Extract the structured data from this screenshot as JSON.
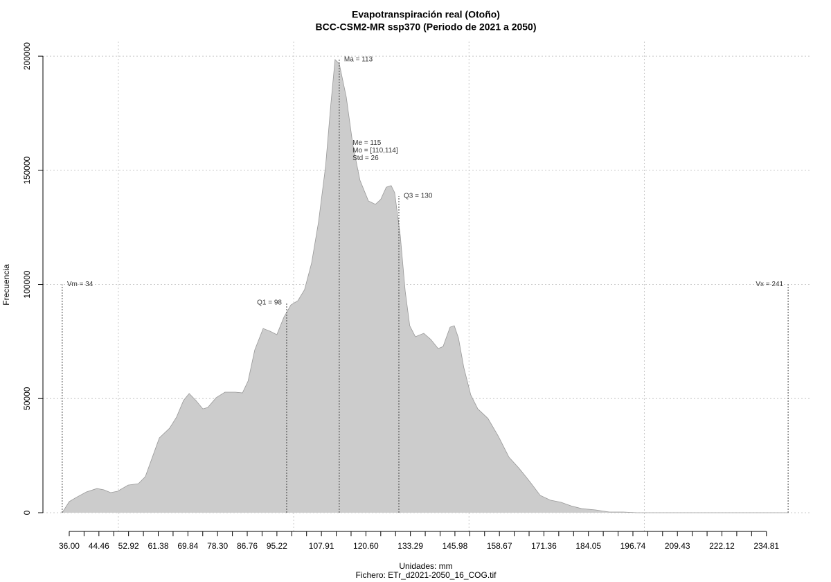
{
  "chart_data": {
    "type": "area",
    "title": "Evapotranspiración real (Otoño)",
    "subtitle": "BCC-CSM2-MR ssp370 (Periodo de 2021 a 2050)",
    "xlabel": "Unidades: mm",
    "caption": "Fichero: ETr_d2021-2050_16_COG.tif",
    "ylabel": "Frecuencia",
    "color": "#cccccc",
    "line_color": "#999999",
    "grid": true,
    "xlim": [
      28.5,
      247.3
    ],
    "ylim": [
      -8200,
      206400
    ],
    "xticks": [
      {
        "value": 36,
        "label": "36.00"
      },
      44.46,
      52.92,
      61.38,
      69.84,
      {
        "value": 78.3,
        "label": "78.30"
      },
      86.76,
      95.22,
      107.91,
      {
        "value": 120.6,
        "label": "120.60"
      },
      133.29,
      145.98,
      158.67,
      171.36,
      184.05,
      196.74,
      209.43,
      222.12,
      234.81
    ],
    "xticks_minor": [
      40.23,
      48.69,
      57.15,
      65.61,
      74.07,
      82.53,
      90.99,
      99.45,
      103.68,
      112.14,
      116.37,
      124.83,
      129.06,
      137.52,
      141.75,
      150.21,
      154.44,
      162.9,
      167.13,
      175.59,
      179.82,
      188.28,
      192.51,
      200.97,
      205.2,
      213.66,
      217.89,
      226.35,
      230.58
    ],
    "xgrid": [
      50,
      100,
      150,
      200
    ],
    "yticks": [
      0,
      50000,
      100000,
      150000,
      200000
    ],
    "x": [
      34.0,
      36.0,
      38.0,
      40.9,
      43.9,
      45.9,
      47.8,
      49.8,
      52.8,
      55.7,
      57.7,
      59.7,
      61.7,
      64.6,
      66.6,
      68.6,
      70.2,
      72.1,
      74.1,
      75.5,
      77.9,
      80.4,
      83.4,
      85.4,
      87.0,
      88.9,
      91.3,
      93.3,
      95.2,
      97.2,
      99.2,
      101.2,
      103.1,
      105.1,
      107.1,
      109.1,
      110.6,
      111.8,
      113.0,
      115.0,
      116.9,
      118.9,
      121.3,
      123.3,
      124.8,
      126.4,
      127.8,
      128.8,
      130.4,
      131.8,
      133.1,
      134.7,
      137.1,
      139.1,
      141.2,
      142.6,
      144.6,
      145.8,
      147.0,
      148.5,
      150.5,
      152.5,
      155.4,
      158.4,
      161.4,
      164.3,
      167.3,
      170.3,
      173.2,
      176.2,
      179.1,
      182.1,
      186.1,
      190.0,
      194.0,
      197.9,
      241.0
    ],
    "values": [
      0,
      4860,
      6700,
      9100,
      10600,
      10000,
      8800,
      9400,
      12100,
      12700,
      15800,
      24300,
      32800,
      37000,
      41900,
      49200,
      52200,
      49200,
      45500,
      46100,
      50400,
      52800,
      52800,
      52500,
      57700,
      71300,
      80700,
      79500,
      78000,
      85600,
      91000,
      92900,
      97700,
      109300,
      127500,
      151800,
      179000,
      198500,
      196700,
      182100,
      160900,
      145700,
      136600,
      135100,
      137200,
      142600,
      143300,
      140200,
      121400,
      97100,
      81900,
      77100,
      78600,
      75900,
      71900,
      72800,
      81300,
      81900,
      76500,
      63700,
      51600,
      45500,
      41300,
      33400,
      24300,
      19400,
      13700,
      7600,
      5500,
      4600,
      3000,
      1800,
      1200,
      300,
      300,
      0,
      0
    ],
    "markers": [
      {
        "label": "Vm = 34",
        "x": 34,
        "y": 100000
      },
      {
        "label": "Q1 = 98",
        "x": 98,
        "y": 92000
      },
      {
        "label": "Ma = 113",
        "x": 113,
        "y": 198500
      },
      {
        "label": "Q3 = 130",
        "x": 130,
        "y": 138700
      },
      {
        "label": "Vx = 241",
        "x": 241,
        "y": 100000
      }
    ],
    "stats": {
      "x": 116.8,
      "y": 162000,
      "lines": [
        "Me = 115",
        "Mo = [110,114]",
        "Std = 26"
      ]
    }
  }
}
